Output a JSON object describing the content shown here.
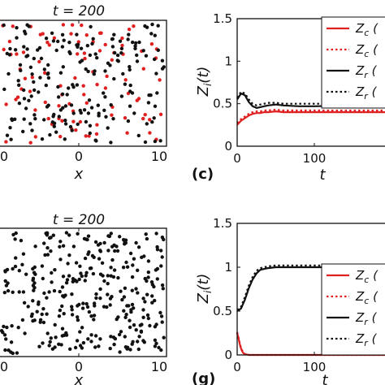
{
  "chart_data": [
    {
      "panel": "top-left",
      "type": "scatter",
      "title": "t = 200",
      "xlabel": "x",
      "xlim": [
        -10,
        10
      ],
      "ylim": [
        -10,
        10
      ],
      "xticks": [
        "0",
        "0",
        "10"
      ],
      "series": [
        {
          "color": "#e02020",
          "count": 95,
          "seed": 7
        },
        {
          "color": "#111111",
          "count": 200,
          "seed": 3
        }
      ]
    },
    {
      "panel": "top-right",
      "type": "line",
      "panel_label": "",
      "ylabel": "Z_i(t)",
      "xlabel": "t",
      "xlim": [
        0,
        200
      ],
      "ylim": [
        0,
        1.5
      ],
      "xticks": [
        0,
        100
      ],
      "yticks": [
        "0",
        "0.5",
        "1",
        "1.5"
      ],
      "legend_position": "top-right",
      "legend": [
        {
          "label": "Z_c (",
          "color": "#e02020",
          "dash": "solid"
        },
        {
          "label": "Z_c (",
          "color": "#e02020",
          "dash": "dotted"
        },
        {
          "label": "Z_r (",
          "color": "#111111",
          "dash": "solid"
        },
        {
          "label": "Z_r (",
          "color": "#111111",
          "dash": "dotted"
        }
      ],
      "series": [
        {
          "color": "#e02020",
          "dash": "solid",
          "x": [
            0,
            5,
            10,
            15,
            20,
            25,
            30,
            35,
            40,
            50,
            60,
            80,
            100,
            150,
            200
          ],
          "y": [
            0.25,
            0.3,
            0.33,
            0.36,
            0.38,
            0.39,
            0.39,
            0.4,
            0.4,
            0.41,
            0.4,
            0.4,
            0.4,
            0.4,
            0.4
          ]
        },
        {
          "color": "#e02020",
          "dash": "dotted",
          "x": [
            0,
            5,
            10,
            15,
            20,
            25,
            30,
            35,
            40,
            50,
            60,
            80,
            100,
            150,
            200
          ],
          "y": [
            0.27,
            0.32,
            0.35,
            0.38,
            0.4,
            0.41,
            0.41,
            0.42,
            0.42,
            0.43,
            0.42,
            0.42,
            0.42,
            0.42,
            0.42
          ]
        },
        {
          "color": "#111111",
          "dash": "solid",
          "x": [
            0,
            5,
            10,
            15,
            20,
            25,
            30,
            35,
            40,
            50,
            60,
            80,
            100,
            150,
            200
          ],
          "y": [
            0.55,
            0.62,
            0.6,
            0.52,
            0.47,
            0.45,
            0.46,
            0.47,
            0.48,
            0.49,
            0.48,
            0.47,
            0.47,
            0.48,
            0.48
          ]
        },
        {
          "color": "#111111",
          "dash": "dotted",
          "x": [
            0,
            5,
            10,
            15,
            20,
            25,
            30,
            35,
            40,
            50,
            60,
            80,
            100,
            150,
            200
          ],
          "y": [
            0.57,
            0.64,
            0.62,
            0.55,
            0.5,
            0.48,
            0.49,
            0.5,
            0.51,
            0.51,
            0.5,
            0.5,
            0.5,
            0.5,
            0.5
          ]
        }
      ]
    },
    {
      "panel": "bottom-left",
      "type": "scatter",
      "title": "t = 200",
      "xlabel": "x",
      "xlim": [
        -10,
        10
      ],
      "ylim": [
        -10,
        10
      ],
      "xticks": [
        "0",
        "0",
        "10"
      ],
      "series": [
        {
          "color": "#111111",
          "count": 330,
          "seed": 11
        }
      ]
    },
    {
      "panel": "bottom-right",
      "type": "line",
      "panel_label": "",
      "ylabel": "Z_i(t)",
      "xlabel": "t",
      "xlim": [
        0,
        200
      ],
      "ylim": [
        0,
        1.5
      ],
      "xticks": [
        0,
        100
      ],
      "yticks": [
        "0",
        "0.5",
        "1",
        "1.5"
      ],
      "legend_position": "bottom-right",
      "legend": [
        {
          "label": "Z_c (",
          "color": "#e02020",
          "dash": "solid"
        },
        {
          "label": "Z_c (",
          "color": "#e02020",
          "dash": "dotted"
        },
        {
          "label": "Z_r (",
          "color": "#111111",
          "dash": "solid"
        },
        {
          "label": "Z_r (",
          "color": "#111111",
          "dash": "dotted"
        }
      ],
      "series": [
        {
          "color": "#e02020",
          "dash": "solid",
          "x": [
            0,
            2,
            4,
            6,
            8,
            10,
            15,
            20,
            30,
            50,
            100,
            200
          ],
          "y": [
            0.25,
            0.18,
            0.1,
            0.05,
            0.02,
            0.01,
            0.0,
            0.0,
            0.0,
            0.0,
            0.0,
            0.0
          ]
        },
        {
          "color": "#e02020",
          "dash": "dotted",
          "x": [
            0,
            2,
            4,
            6,
            8,
            10,
            15,
            20,
            30,
            50,
            100,
            200
          ],
          "y": [
            0.26,
            0.19,
            0.11,
            0.06,
            0.03,
            0.01,
            0.0,
            0.0,
            0.0,
            0.0,
            0.0,
            0.0
          ]
        },
        {
          "color": "#111111",
          "dash": "solid",
          "x": [
            0,
            5,
            10,
            15,
            20,
            25,
            30,
            40,
            50,
            60,
            80,
            100,
            150,
            200
          ],
          "y": [
            0.5,
            0.53,
            0.63,
            0.76,
            0.86,
            0.93,
            0.97,
            0.99,
            1.0,
            1.0,
            1.0,
            1.0,
            1.0,
            1.0
          ]
        },
        {
          "color": "#111111",
          "dash": "dotted",
          "x": [
            0,
            5,
            10,
            15,
            20,
            25,
            30,
            40,
            50,
            60,
            80,
            100,
            150,
            200
          ],
          "y": [
            0.51,
            0.55,
            0.66,
            0.79,
            0.89,
            0.96,
            0.99,
            1.01,
            1.02,
            1.02,
            1.02,
            1.02,
            1.02,
            1.02
          ]
        }
      ]
    }
  ],
  "labels": {
    "panel_c": "(c)",
    "panel_g": "(g)"
  }
}
